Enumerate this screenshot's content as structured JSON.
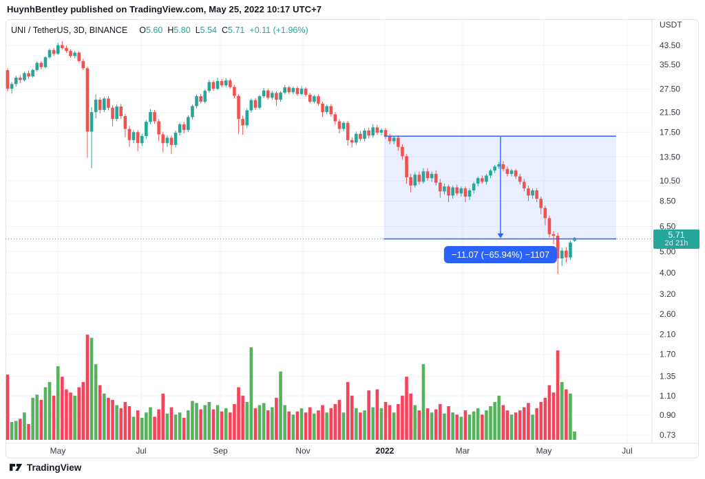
{
  "attribution": "HuynhBentley published on TradingView.com, May 25, 2022 10:17 UTC+7",
  "legend": {
    "symbol": "UNI / TetherUS, 3D, BINANCE",
    "o_label": "O",
    "o": "5.60",
    "h_label": "H",
    "h": "5.80",
    "l_label": "L",
    "l": "5.54",
    "c_label": "C",
    "c": "5.71",
    "change": "+0.11 (+1.96%)"
  },
  "y_axis": {
    "currency": "USDT",
    "ticks": [
      "43.50",
      "35.50",
      "27.50",
      "21.50",
      "17.50",
      "13.50",
      "10.50",
      "8.50",
      "6.50",
      "5.00",
      "4.00",
      "3.20",
      "2.60",
      "2.10",
      "1.70",
      "1.35",
      "1.10",
      "0.90",
      "0.73"
    ]
  },
  "x_axis": {
    "ticks": [
      {
        "label": "May",
        "bar": 12.46,
        "bold": false
      },
      {
        "label": "Jul",
        "bar": 32.3,
        "bold": false
      },
      {
        "label": "Sep",
        "bar": 51.15,
        "bold": false
      },
      {
        "label": "Nov",
        "bar": 70.82,
        "bold": false
      },
      {
        "label": "2022",
        "bar": 90.33,
        "bold": true
      },
      {
        "label": "Mar",
        "bar": 108.85,
        "bold": false
      },
      {
        "label": "May",
        "bar": 128.2,
        "bold": false
      },
      {
        "label": "Jul",
        "bar": 148.03,
        "bold": false
      }
    ]
  },
  "price_badge": {
    "price": "5.71",
    "countdown": "2d 21h"
  },
  "measure": {
    "label": "−11.07 (−65.94%) −1107",
    "start_price": 16.78,
    "end_price": 5.71,
    "start_bar": 90.16,
    "end_bar": 145.41,
    "arrow_bar": 117.87
  },
  "footer": {
    "brand": "TradingView"
  },
  "colors": {
    "up": "#26a69a",
    "down": "#ef5350",
    "vol_up": "#56b25c",
    "vol_down": "#f4435a",
    "accent_blue": "#2962ff",
    "box_fill": "rgba(41,98,255,0.10)",
    "grid": "#f0f3fa",
    "frame": "#e0e3eb",
    "axis_text": "#363a45",
    "price_line": "#26a69a"
  },
  "chart_data": {
    "type": "candlestick+volume",
    "title": "UNI / TetherUS, 3D, BINANCE",
    "scale": "log",
    "x_range": "Apr 2021 - Jul 2022",
    "y_range_usdt": [
      0.73,
      45.4
    ],
    "current_price": 5.71,
    "candles_ohlcv": [
      [
        33.5,
        34.2,
        26.8,
        27.6,
        0.62
      ],
      [
        27.6,
        29.6,
        26.2,
        29.0,
        0.17
      ],
      [
        29.0,
        31.6,
        28.2,
        31.0,
        0.18
      ],
      [
        31.0,
        31.8,
        29.3,
        30.2,
        0.2
      ],
      [
        30.2,
        33.0,
        29.8,
        32.5,
        0.26
      ],
      [
        32.5,
        33.4,
        30.6,
        31.4,
        0.15
      ],
      [
        31.4,
        34.0,
        30.9,
        33.6,
        0.4
      ],
      [
        33.6,
        36.8,
        33.0,
        36.2,
        0.43
      ],
      [
        36.2,
        36.9,
        33.8,
        34.6,
        0.38
      ],
      [
        34.6,
        38.9,
        34.2,
        38.4,
        0.5
      ],
      [
        38.4,
        42.0,
        37.8,
        41.4,
        0.55
      ],
      [
        41.4,
        42.2,
        38.9,
        39.8,
        0.42
      ],
      [
        39.8,
        44.8,
        39.4,
        43.6,
        0.7
      ],
      [
        43.6,
        45.4,
        41.6,
        42.3,
        0.6
      ],
      [
        42.3,
        43.4,
        40.2,
        41.0,
        0.48
      ],
      [
        41.0,
        41.8,
        38.2,
        38.9,
        0.45
      ],
      [
        38.9,
        41.0,
        38.0,
        40.3,
        0.42
      ],
      [
        40.3,
        40.9,
        36.2,
        36.9,
        0.5
      ],
      [
        36.9,
        37.8,
        33.6,
        34.2,
        0.55
      ],
      [
        34.2,
        34.8,
        13.4,
        17.6,
        1.0
      ],
      [
        17.6,
        22.8,
        12.0,
        21.6,
        0.97
      ],
      [
        21.6,
        26.0,
        20.2,
        24.6,
        0.72
      ],
      [
        24.6,
        25.2,
        21.3,
        22.1,
        0.52
      ],
      [
        22.1,
        25.4,
        21.6,
        24.9,
        0.44
      ],
      [
        24.9,
        25.6,
        22.0,
        22.6,
        0.4
      ],
      [
        22.6,
        23.2,
        18.6,
        20.1,
        0.38
      ],
      [
        20.1,
        23.4,
        19.6,
        22.9,
        0.33
      ],
      [
        22.9,
        23.5,
        20.1,
        20.7,
        0.3
      ],
      [
        20.7,
        21.2,
        16.6,
        18.1,
        0.36
      ],
      [
        18.1,
        18.7,
        15.0,
        16.1,
        0.32
      ],
      [
        16.1,
        17.9,
        15.6,
        17.5,
        0.22
      ],
      [
        17.5,
        17.9,
        14.3,
        15.6,
        0.28
      ],
      [
        15.6,
        17.2,
        15.1,
        16.8,
        0.21
      ],
      [
        16.8,
        19.9,
        16.3,
        19.5,
        0.26
      ],
      [
        19.5,
        22.3,
        19.0,
        21.6,
        0.31
      ],
      [
        21.6,
        22.1,
        19.1,
        19.6,
        0.22
      ],
      [
        19.6,
        20.1,
        15.9,
        17.1,
        0.29
      ],
      [
        17.1,
        17.6,
        14.2,
        15.6,
        0.44
      ],
      [
        15.6,
        16.9,
        15.0,
        16.5,
        0.25
      ],
      [
        16.5,
        16.9,
        13.9,
        15.3,
        0.31
      ],
      [
        15.3,
        17.8,
        14.9,
        17.4,
        0.24
      ],
      [
        17.4,
        19.3,
        16.9,
        19.0,
        0.26
      ],
      [
        19.0,
        19.5,
        17.3,
        17.9,
        0.21
      ],
      [
        17.9,
        20.9,
        17.5,
        20.5,
        0.28
      ],
      [
        20.5,
        23.4,
        20.0,
        23.0,
        0.37
      ],
      [
        23.0,
        25.9,
        22.5,
        25.5,
        0.35
      ],
      [
        25.5,
        26.1,
        23.6,
        24.1,
        0.29
      ],
      [
        24.1,
        27.4,
        23.7,
        27.0,
        0.33
      ],
      [
        27.0,
        30.4,
        26.5,
        29.6,
        0.36
      ],
      [
        29.6,
        30.2,
        27.0,
        27.6,
        0.29
      ],
      [
        27.6,
        31.0,
        27.2,
        29.9,
        0.33
      ],
      [
        29.9,
        30.5,
        28.0,
        28.6,
        0.27
      ],
      [
        28.6,
        30.8,
        28.1,
        30.1,
        0.3
      ],
      [
        30.1,
        30.7,
        27.6,
        28.1,
        0.26
      ],
      [
        28.1,
        28.7,
        25.0,
        25.6,
        0.34
      ],
      [
        25.6,
        26.1,
        17.2,
        20.1,
        0.5
      ],
      [
        20.1,
        20.8,
        17.0,
        18.8,
        0.42
      ],
      [
        18.8,
        22.4,
        18.3,
        22.0,
        0.36
      ],
      [
        22.0,
        24.9,
        21.5,
        24.5,
        0.88
      ],
      [
        24.5,
        25.0,
        22.1,
        22.6,
        0.3
      ],
      [
        22.6,
        25.9,
        22.2,
        25.5,
        0.33
      ],
      [
        25.5,
        27.8,
        25.0,
        27.1,
        0.35
      ],
      [
        27.1,
        27.6,
        24.6,
        25.1,
        0.28
      ],
      [
        25.1,
        26.9,
        24.5,
        26.4,
        0.31
      ],
      [
        26.4,
        26.9,
        23.0,
        24.6,
        0.4
      ],
      [
        24.6,
        26.9,
        24.1,
        26.5,
        0.65
      ],
      [
        26.5,
        28.7,
        26.0,
        28.0,
        0.33
      ],
      [
        28.0,
        28.5,
        26.1,
        26.6,
        0.27
      ],
      [
        26.6,
        28.2,
        26.1,
        27.8,
        0.24
      ],
      [
        27.8,
        28.3,
        25.6,
        26.1,
        0.27
      ],
      [
        26.1,
        28.4,
        25.7,
        27.6,
        0.3
      ],
      [
        27.6,
        28.1,
        25.4,
        25.9,
        0.26
      ],
      [
        25.9,
        26.4,
        23.6,
        24.1,
        0.31
      ],
      [
        24.1,
        25.9,
        23.6,
        25.5,
        0.25
      ],
      [
        25.5,
        26.0,
        23.1,
        23.6,
        0.28
      ],
      [
        23.6,
        24.1,
        20.5,
        21.6,
        0.33
      ],
      [
        21.6,
        23.4,
        21.1,
        23.0,
        0.26
      ],
      [
        23.0,
        23.5,
        20.6,
        21.1,
        0.3
      ],
      [
        21.1,
        21.6,
        18.9,
        19.6,
        0.34
      ],
      [
        19.6,
        20.1,
        17.3,
        18.1,
        0.38
      ],
      [
        18.1,
        19.6,
        17.7,
        19.3,
        0.26
      ],
      [
        19.3,
        19.7,
        15.2,
        16.1,
        0.55
      ],
      [
        16.1,
        16.6,
        14.9,
        15.7,
        0.42
      ],
      [
        15.7,
        17.6,
        15.3,
        17.2,
        0.3
      ],
      [
        17.2,
        17.7,
        15.9,
        16.3,
        0.26
      ],
      [
        16.3,
        18.2,
        15.9,
        17.8,
        0.28
      ],
      [
        17.8,
        18.3,
        16.4,
        16.9,
        0.47
      ],
      [
        16.9,
        19.0,
        16.5,
        18.4,
        0.31
      ],
      [
        18.4,
        18.9,
        17.0,
        17.4,
        0.48
      ],
      [
        17.4,
        18.2,
        16.9,
        17.9,
        0.3
      ],
      [
        17.9,
        18.3,
        16.3,
        16.8,
        0.36
      ],
      [
        16.8,
        17.2,
        15.4,
        15.9,
        0.33
      ],
      [
        15.9,
        16.8,
        15.4,
        16.5,
        0.26
      ],
      [
        16.5,
        16.9,
        14.4,
        15.0,
        0.34
      ],
      [
        15.0,
        15.4,
        13.1,
        13.6,
        0.42
      ],
      [
        13.6,
        13.9,
        10.2,
        10.9,
        0.6
      ],
      [
        10.9,
        11.3,
        9.3,
        10.0,
        0.44
      ],
      [
        10.0,
        11.5,
        9.8,
        11.2,
        0.33
      ],
      [
        11.2,
        11.6,
        10.1,
        10.4,
        0.28
      ],
      [
        10.4,
        12.0,
        10.2,
        11.6,
        0.72
      ],
      [
        11.6,
        12.0,
        10.5,
        10.8,
        0.3
      ],
      [
        10.8,
        11.6,
        10.4,
        11.3,
        0.26
      ],
      [
        11.3,
        11.7,
        10.0,
        10.3,
        0.29
      ],
      [
        10.3,
        10.7,
        8.8,
        9.4,
        0.34
      ],
      [
        9.4,
        10.2,
        9.1,
        9.9,
        0.25
      ],
      [
        9.9,
        10.1,
        8.4,
        9.0,
        0.32
      ],
      [
        9.0,
        10.0,
        8.7,
        9.8,
        0.26
      ],
      [
        9.8,
        10.1,
        9.0,
        9.2,
        0.24
      ],
      [
        9.2,
        9.9,
        8.9,
        9.7,
        0.22
      ],
      [
        9.7,
        9.9,
        8.4,
        8.9,
        0.28
      ],
      [
        8.9,
        9.7,
        8.6,
        9.5,
        0.24
      ],
      [
        9.5,
        10.4,
        9.2,
        10.2,
        0.27
      ],
      [
        10.2,
        11.0,
        9.9,
        10.8,
        0.3
      ],
      [
        10.8,
        11.1,
        10.2,
        10.4,
        0.24
      ],
      [
        10.4,
        11.3,
        10.1,
        11.1,
        0.28
      ],
      [
        11.1,
        11.9,
        10.8,
        11.7,
        0.32
      ],
      [
        11.7,
        12.4,
        11.4,
        12.2,
        0.36
      ],
      [
        12.2,
        12.8,
        11.9,
        12.5,
        0.42
      ],
      [
        12.5,
        12.9,
        11.6,
        11.9,
        0.33
      ],
      [
        11.9,
        12.2,
        11.0,
        11.3,
        0.28
      ],
      [
        11.3,
        11.9,
        11.0,
        11.7,
        0.24
      ],
      [
        11.7,
        11.9,
        10.7,
        11.0,
        0.26
      ],
      [
        11.0,
        11.3,
        10.1,
        10.4,
        0.28
      ],
      [
        10.4,
        10.7,
        9.4,
        9.7,
        0.31
      ],
      [
        9.7,
        10.0,
        8.5,
        9.0,
        0.35
      ],
      [
        9.0,
        9.7,
        8.7,
        9.5,
        0.24
      ],
      [
        9.5,
        9.7,
        8.4,
        8.7,
        0.3
      ],
      [
        8.7,
        8.9,
        7.4,
        7.9,
        0.36
      ],
      [
        7.9,
        8.1,
        6.6,
        7.1,
        0.4
      ],
      [
        7.1,
        7.3,
        5.8,
        6.0,
        0.52
      ],
      [
        6.0,
        6.2,
        5.4,
        5.9,
        0.45
      ],
      [
        5.9,
        6.1,
        3.95,
        4.65,
        0.85
      ],
      [
        4.65,
        5.2,
        4.3,
        5.05,
        0.55
      ],
      [
        5.05,
        5.25,
        4.45,
        4.7,
        0.48
      ],
      [
        4.7,
        5.6,
        4.6,
        5.5,
        0.44
      ],
      [
        5.6,
        5.8,
        5.54,
        5.71,
        0.08
      ]
    ]
  }
}
